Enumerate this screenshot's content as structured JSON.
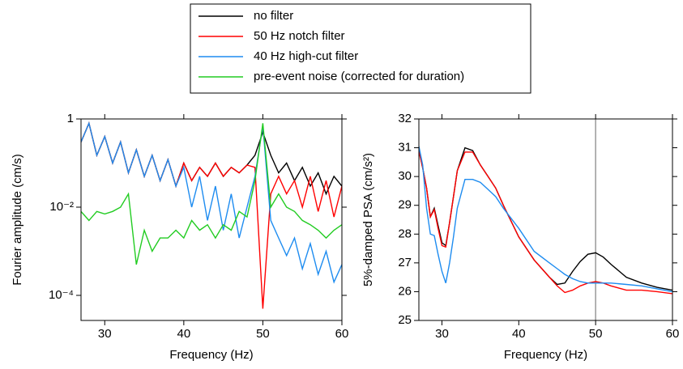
{
  "chart_data": [
    {
      "type": "line",
      "y_label": "Fourier amplitude (cm/s)",
      "x_label": "Frequency (Hz)",
      "log_y": true,
      "xlim": [
        27,
        60
      ],
      "xticks": [
        30,
        40,
        50,
        60
      ],
      "ylim": [
        2.7e-05,
        1
      ],
      "yticks": [
        {
          "value": 0.0001,
          "label": "10⁻⁴"
        },
        {
          "value": 0.01,
          "label": "10⁻²"
        },
        1
      ],
      "x": [
        27,
        28,
        29,
        30,
        31,
        32,
        33,
        34,
        35,
        36,
        37,
        38,
        39,
        40,
        41,
        42,
        43,
        44,
        45,
        46,
        47,
        48,
        49,
        50,
        51,
        52,
        53,
        54,
        55,
        56,
        57,
        58,
        59,
        60
      ],
      "series": [
        {
          "name": "no filter",
          "color": "#000000",
          "values": [
            0.3,
            0.8,
            0.15,
            0.4,
            0.1,
            0.3,
            0.06,
            0.2,
            0.05,
            0.15,
            0.04,
            0.12,
            0.03,
            0.1,
            0.04,
            0.08,
            0.05,
            0.1,
            0.05,
            0.08,
            0.06,
            0.09,
            0.15,
            0.5,
            0.15,
            0.06,
            0.1,
            0.04,
            0.08,
            0.03,
            0.06,
            0.02,
            0.05,
            0.03
          ]
        },
        {
          "name": "50 Hz notch filter",
          "color": "#ff0000",
          "values": [
            0.3,
            0.8,
            0.15,
            0.4,
            0.1,
            0.3,
            0.06,
            0.2,
            0.05,
            0.15,
            0.04,
            0.12,
            0.03,
            0.1,
            0.04,
            0.08,
            0.05,
            0.1,
            0.05,
            0.08,
            0.06,
            0.09,
            0.08,
            5e-05,
            0.02,
            0.05,
            0.02,
            0.04,
            0.01,
            0.05,
            0.008,
            0.04,
            0.006,
            0.03
          ]
        },
        {
          "name": "40 Hz high-cut filter",
          "color": "#1e8cf0",
          "values": [
            0.3,
            0.8,
            0.15,
            0.4,
            0.1,
            0.3,
            0.06,
            0.2,
            0.05,
            0.15,
            0.04,
            0.12,
            0.03,
            0.08,
            0.01,
            0.05,
            0.005,
            0.03,
            0.003,
            0.02,
            0.002,
            0.01,
            0.05,
            0.7,
            0.005,
            0.002,
            0.0008,
            0.002,
            0.0004,
            0.0015,
            0.0003,
            0.001,
            0.0002,
            0.0005
          ]
        },
        {
          "name": "pre-event noise (corrected for duration)",
          "color": "#22cc22",
          "values": [
            0.008,
            0.005,
            0.008,
            0.007,
            0.008,
            0.01,
            0.02,
            0.0005,
            0.003,
            0.001,
            0.002,
            0.002,
            0.003,
            0.002,
            0.005,
            0.003,
            0.004,
            0.002,
            0.004,
            0.003,
            0.008,
            0.006,
            0.04,
            0.8,
            0.01,
            0.02,
            0.01,
            0.008,
            0.005,
            0.004,
            0.003,
            0.002,
            0.003,
            0.004
          ]
        }
      ]
    },
    {
      "type": "line",
      "y_label": "5%-damped PSA (cm/s²)",
      "x_label": "Frequency (Hz)",
      "log_y": false,
      "xlim": [
        27,
        60
      ],
      "xticks": [
        30,
        40,
        50,
        60
      ],
      "ylim": [
        25,
        32
      ],
      "yticks": [
        25,
        26,
        27,
        28,
        29,
        30,
        31,
        32
      ],
      "vline": 50,
      "vline_color": "#999999",
      "x": [
        27,
        27.5,
        28,
        28.5,
        29,
        29.5,
        30,
        30.5,
        31,
        31.5,
        32,
        33,
        34,
        35,
        36,
        37,
        38,
        40,
        42,
        44,
        45,
        46,
        47,
        48,
        49,
        50,
        51,
        52,
        54,
        56,
        58,
        60
      ],
      "series": [
        {
          "color": "#000000",
          "values": [
            30.9,
            30.3,
            29.6,
            28.6,
            28.9,
            28.3,
            27.7,
            27.6,
            28.4,
            29.3,
            30.2,
            31.0,
            30.9,
            30.4,
            30.0,
            29.6,
            29.0,
            27.9,
            27.1,
            26.5,
            26.25,
            26.3,
            26.7,
            27.05,
            27.3,
            27.35,
            27.2,
            26.95,
            26.5,
            26.3,
            26.15,
            26.05
          ]
        },
        {
          "color": "#ff0000",
          "values": [
            30.9,
            30.3,
            29.6,
            28.6,
            28.85,
            28.2,
            27.6,
            27.55,
            28.4,
            29.3,
            30.2,
            30.85,
            30.85,
            30.4,
            30.0,
            29.6,
            29.0,
            27.9,
            27.1,
            26.5,
            26.2,
            25.97,
            26.05,
            26.2,
            26.3,
            26.35,
            26.3,
            26.2,
            26.05,
            26.05,
            26.0,
            25.93
          ]
        },
        {
          "color": "#1e8cf0",
          "values": [
            31.05,
            30.4,
            28.9,
            28.0,
            27.95,
            27.3,
            26.7,
            26.3,
            27.0,
            27.9,
            28.9,
            29.9,
            29.9,
            29.8,
            29.55,
            29.3,
            28.9,
            28.2,
            27.4,
            27.0,
            26.8,
            26.6,
            26.45,
            26.35,
            26.3,
            26.3,
            26.3,
            26.3,
            26.25,
            26.2,
            26.1,
            26.0
          ]
        }
      ]
    }
  ]
}
